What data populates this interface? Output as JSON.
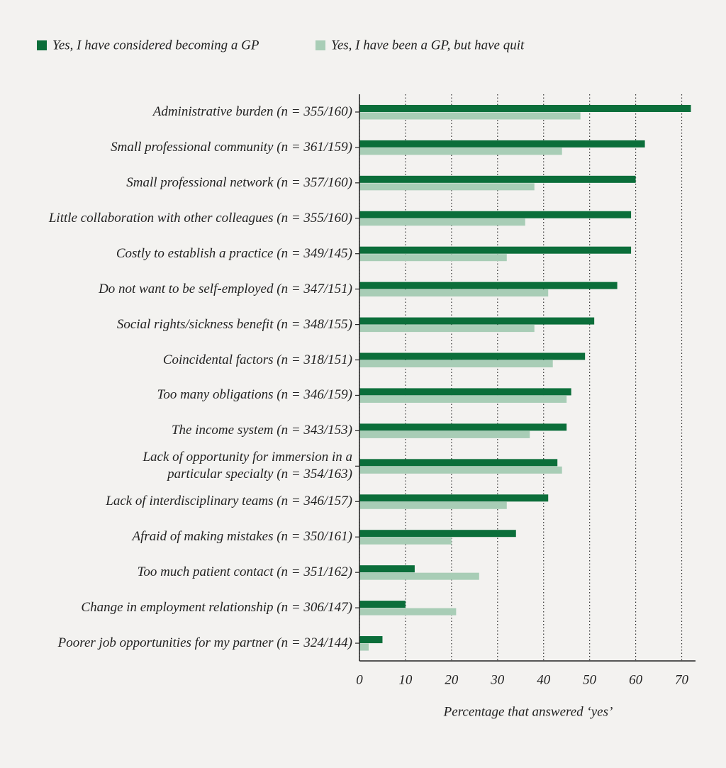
{
  "chart_data": {
    "type": "hbar",
    "xlabel": "Percentage that answered ‘yes’",
    "categories": [
      "Administrative burden (n = 355/160)",
      "Small professional community (n = 361/159)",
      "Small professional network (n = 357/160)",
      "Little collaboration with other colleagues (n = 355/160)",
      "Costly to establish a practice (n = 349/145)",
      "Do not want to be self-employed (n = 347/151)",
      "Social rights/sickness benefit (n = 348/155)",
      "Coincidental factors (n = 318/151)",
      "Too many obligations (n = 346/159)",
      "The income system (n = 343/153)",
      "Lack of opportunity for immersion in a\nparticular specialty (n = 354/163)",
      "Lack of interdisciplinary teams (n = 346/157)",
      "Afraid of making mistakes (n = 350/161)",
      "Too much patient contact (n = 351/162)",
      "Change in employment relationship (n = 306/147)",
      "Poorer job opportunities for my partner (n = 324/144)"
    ],
    "series": [
      {
        "name": "Yes, I have considered becoming a GP",
        "color": "#0b6e3a",
        "values": [
          72,
          62,
          60,
          59,
          59,
          56,
          51,
          49,
          46,
          45,
          43,
          41,
          34,
          12,
          10,
          5
        ]
      },
      {
        "name": "Yes, I have been a GP, but have quit",
        "color": "#a8cdb6",
        "values": [
          48,
          44,
          38,
          36,
          32,
          41,
          38,
          42,
          45,
          37,
          44,
          32,
          20,
          26,
          21,
          2
        ]
      }
    ],
    "xlim": [
      0,
      73
    ],
    "xticks": [
      0,
      10,
      20,
      30,
      40,
      50,
      60,
      70
    ],
    "grid": true
  }
}
